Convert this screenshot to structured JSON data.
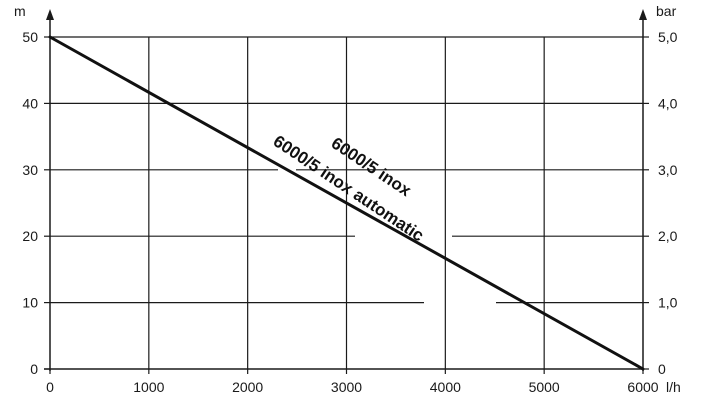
{
  "chart_data": {
    "type": "line",
    "x_unit": "l/h",
    "y_unit_left": "m",
    "y_unit_right": "bar",
    "xlim": [
      0,
      6000
    ],
    "ylim": [
      0,
      50
    ],
    "ylim_right": [
      0,
      5
    ],
    "x_ticks": [
      "0",
      "1000",
      "2000",
      "3000",
      "4000",
      "5000",
      "6000"
    ],
    "y_ticks_left": [
      "0",
      "10",
      "20",
      "30",
      "40",
      "50"
    ],
    "y_ticks_right": [
      "0",
      "1,0",
      "2,0",
      "3,0",
      "4,0",
      "5,0"
    ],
    "grid": true,
    "series": [
      {
        "x": [
          0,
          6000
        ],
        "y": [
          50,
          0
        ]
      }
    ],
    "annotations": [
      "6000/5 inox",
      "6000/5 inox automatic"
    ],
    "colors": {
      "line": "#111111",
      "grid": "#1a1a1a",
      "text": "#1a1a1a"
    }
  }
}
